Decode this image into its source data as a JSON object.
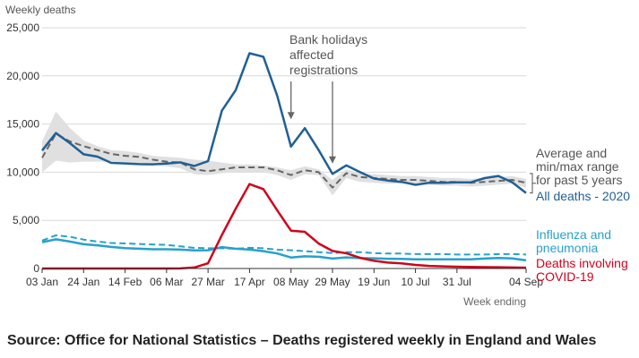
{
  "chart_data": {
    "type": "line",
    "ylabel": "Weekly deaths",
    "xlabel": "Week ending",
    "ylim": [
      0,
      25000
    ],
    "yticks": [
      0,
      5000,
      10000,
      15000,
      20000,
      25000
    ],
    "ytick_labels": [
      "0",
      "5,000",
      "10,000",
      "15,000",
      "20,000",
      "25,000"
    ],
    "xtick_labels": [
      "03 Jan",
      "24 Jan",
      "14 Feb",
      "06 Mar",
      "27 Mar",
      "17 Apr",
      "08 May",
      "29 May",
      "19 Jun",
      "10 Jul",
      "31 Jul",
      "04 Sep"
    ],
    "x": [
      "03 Jan",
      "10 Jan",
      "17 Jan",
      "24 Jan",
      "31 Jan",
      "07 Feb",
      "14 Feb",
      "21 Feb",
      "28 Feb",
      "06 Mar",
      "13 Mar",
      "20 Mar",
      "27 Mar",
      "03 Apr",
      "10 Apr",
      "17 Apr",
      "24 Apr",
      "01 May",
      "08 May",
      "15 May",
      "22 May",
      "29 May",
      "05 Jun",
      "12 Jun",
      "19 Jun",
      "26 Jun",
      "03 Jul",
      "10 Jul",
      "17 Jul",
      "24 Jul",
      "31 Jul",
      "07 Aug",
      "14 Aug",
      "21 Aug",
      "28 Aug",
      "04 Sep"
    ],
    "series": [
      {
        "name": "All deaths - 2020",
        "color": "#206095",
        "style": "solid",
        "values": [
          12250,
          14060,
          13020,
          11860,
          11620,
          10970,
          10910,
          10840,
          10820,
          10900,
          11020,
          10640,
          11140,
          16390,
          18520,
          22350,
          21990,
          17950,
          12660,
          14570,
          12290,
          9820,
          10710,
          10000,
          9340,
          9140,
          9000,
          8690,
          8900,
          8890,
          8950,
          8950,
          9390,
          9610,
          8940,
          7840
        ]
      },
      {
        "name": "Average and min/max range for past 5 years",
        "color": "#666666",
        "style": "dashed",
        "values": [
          11500,
          14000,
          13200,
          12700,
          12300,
          11900,
          11700,
          11600,
          11300,
          11100,
          11000,
          10300,
          10100,
          10300,
          10500,
          10500,
          10500,
          10200,
          9700,
          10200,
          10000,
          8400,
          9900,
          9500,
          9400,
          9300,
          9200,
          9200,
          9100,
          9000,
          9000,
          8900,
          9000,
          9100,
          9200,
          8900
        ]
      },
      {
        "name": "Influenza and pneumonia",
        "color": "#27a0cc",
        "style": "solid",
        "values": [
          2720,
          3030,
          2800,
          2520,
          2410,
          2240,
          2110,
          2050,
          2000,
          2000,
          1960,
          1880,
          1900,
          2220,
          2050,
          1960,
          1800,
          1560,
          1140,
          1260,
          1220,
          1030,
          1150,
          1080,
          1060,
          1010,
          990,
          950,
          960,
          950,
          960,
          960,
          1030,
          1090,
          1040,
          850
        ]
      },
      {
        "name": "Influenza and pneumonia (5-year average)",
        "color": "#27a0cc",
        "style": "dashed",
        "values": [
          2900,
          3450,
          3300,
          3000,
          2800,
          2650,
          2600,
          2550,
          2500,
          2450,
          2300,
          2150,
          2100,
          2100,
          2050,
          2150,
          2100,
          1950,
          1900,
          1800,
          1700,
          1600,
          1700,
          1700,
          1600,
          1550,
          1550,
          1500,
          1500,
          1500,
          1450,
          1450,
          1450,
          1500,
          1500,
          1450
        ]
      },
      {
        "name": "Deaths involving COVID-19",
        "color": "#d0021b",
        "style": "solid",
        "values": [
          0,
          0,
          0,
          0,
          0,
          0,
          0,
          0,
          0,
          0,
          10,
          100,
          540,
          3480,
          6210,
          8760,
          8240,
          6040,
          3930,
          3810,
          2590,
          1820,
          1580,
          1110,
          800,
          610,
          530,
          370,
          270,
          220,
          190,
          160,
          140,
          130,
          100,
          80
        ]
      }
    ],
    "range_band": {
      "name": "min/max range for past 5 years",
      "color": "#e0e0e0",
      "upper": [
        13200,
        16300,
        14600,
        13300,
        12700,
        12300,
        12200,
        12000,
        11700,
        11600,
        11500,
        11300,
        11200,
        11000,
        10800,
        10800,
        10700,
        10500,
        10200,
        10600,
        10300,
        9200,
        10300,
        9900,
        9800,
        9700,
        9600,
        9600,
        9500,
        9400,
        9400,
        9300,
        9400,
        9500,
        9600,
        9300
      ],
      "lower": [
        10000,
        11200,
        11000,
        11100,
        11100,
        11100,
        11000,
        10900,
        10800,
        10600,
        10400,
        9800,
        9700,
        9900,
        10000,
        10000,
        10000,
        9700,
        9200,
        9800,
        9700,
        7600,
        9400,
        9000,
        8900,
        8800,
        8800,
        8700,
        8700,
        8600,
        8600,
        8500,
        8600,
        8700,
        8800,
        8400
      ]
    },
    "annotations": [
      {
        "text": [
          "Bank holidays",
          "affected",
          "registrations"
        ],
        "arrows_at": [
          "08 May",
          "29 May"
        ]
      }
    ],
    "labels": {
      "average": [
        "Average and",
        "min/max range",
        "for past 5 years"
      ],
      "all": "All deaths - 2020",
      "flu": [
        "Influenza and",
        "pneumonia"
      ],
      "covid": [
        "Deaths involving",
        "COVID-19"
      ]
    },
    "grid": true,
    "legend": "direct labels at right"
  },
  "source": "Source: Office for National Statistics – Deaths registered weekly in England and Wales"
}
